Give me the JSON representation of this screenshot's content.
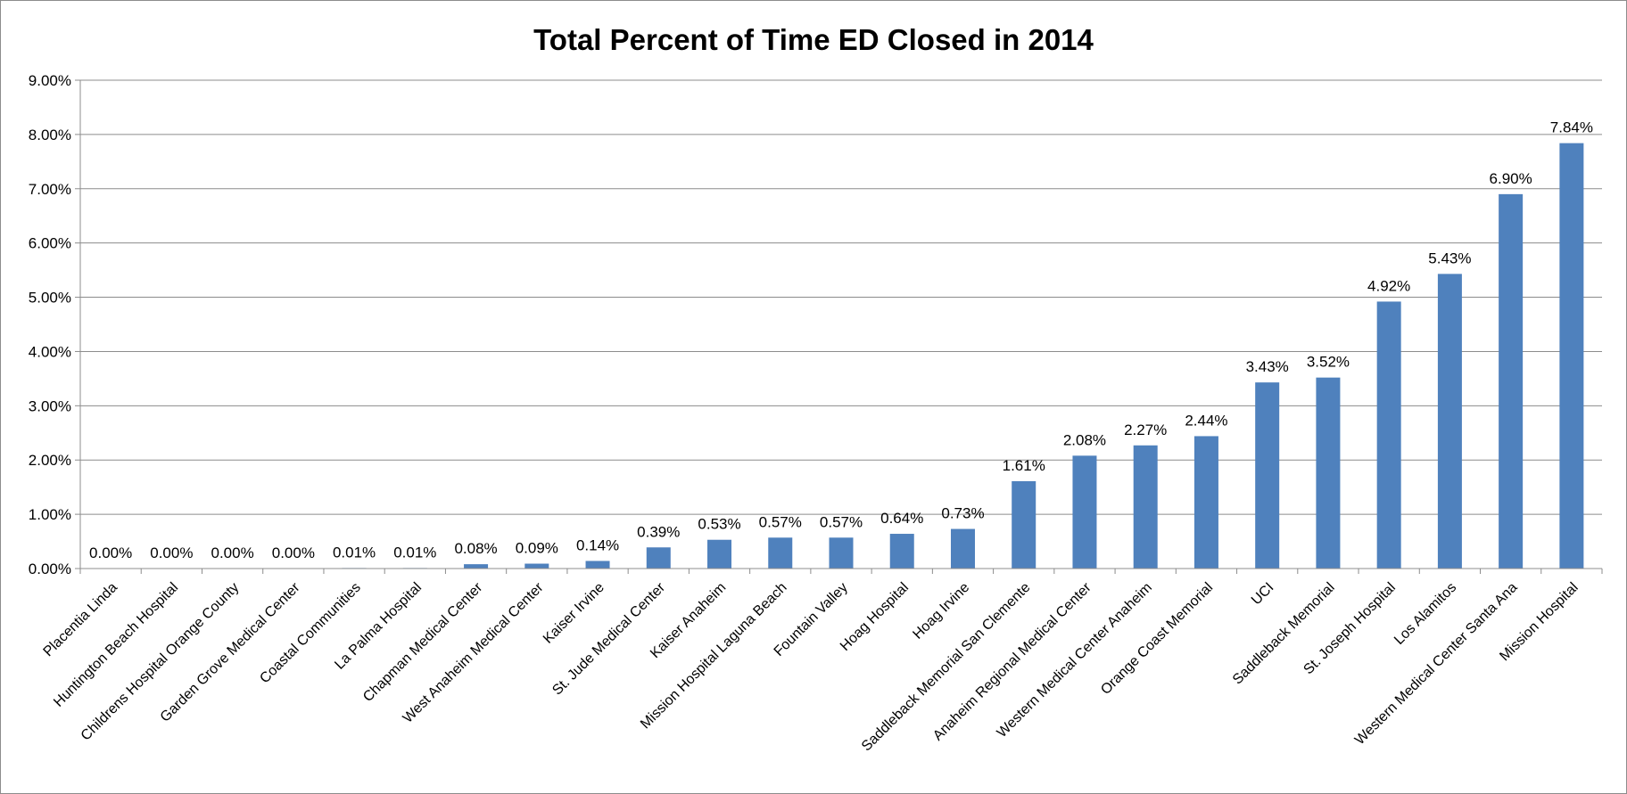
{
  "chart_data": {
    "type": "bar",
    "title": "Total Percent of Time ED Closed in 2014",
    "xlabel": "",
    "ylabel": "",
    "ylim": [
      0,
      9
    ],
    "y_ticks": [
      "0.00%",
      "1.00%",
      "2.00%",
      "3.00%",
      "4.00%",
      "5.00%",
      "6.00%",
      "7.00%",
      "8.00%",
      "9.00%"
    ],
    "grid": true,
    "legend": "none",
    "bar_color": "#4F81BD",
    "categories": [
      "Placentia Linda",
      "Huntington Beach Hospital",
      "Childrens Hospital Orange County",
      "Garden Grove Medical Center",
      "Coastal Communities",
      "La Palma Hospital",
      "Chapman Medical Center",
      "West Anaheim Medical Center",
      "Kaiser Irvine",
      "St. Jude Medical Center",
      "Kaiser Anaheim",
      "Mission Hospital Laguna Beach",
      "Fountain Valley",
      "Hoag Hospital",
      "Hoag Irvine",
      "Saddleback Memorial San Clemente",
      "Anaheim  Regional Medical Center",
      "Western Medical Center Anaheim",
      "Orange Coast Memorial",
      "UCI",
      "Saddleback Memorial",
      "St. Joseph Hospital",
      "Los Alamitos",
      "Western Medical Center Santa Ana",
      "Mission Hospital"
    ],
    "values": [
      0.0,
      0.0,
      0.0,
      0.0,
      0.01,
      0.01,
      0.08,
      0.09,
      0.14,
      0.39,
      0.53,
      0.57,
      0.57,
      0.64,
      0.73,
      1.61,
      2.08,
      2.27,
      2.44,
      3.43,
      3.52,
      4.92,
      5.43,
      6.9,
      7.84
    ],
    "data_labels": [
      "0.00%",
      "0.00%",
      "0.00%",
      "0.00%",
      "0.01%",
      "0.01%",
      "0.08%",
      "0.09%",
      "0.14%",
      "0.39%",
      "0.53%",
      "0.57%",
      "0.57%",
      "0.64%",
      "0.73%",
      "1.61%",
      "2.08%",
      "2.27%",
      "2.44%",
      "3.43%",
      "3.52%",
      "4.92%",
      "5.43%",
      "6.90%",
      "7.84%"
    ]
  }
}
